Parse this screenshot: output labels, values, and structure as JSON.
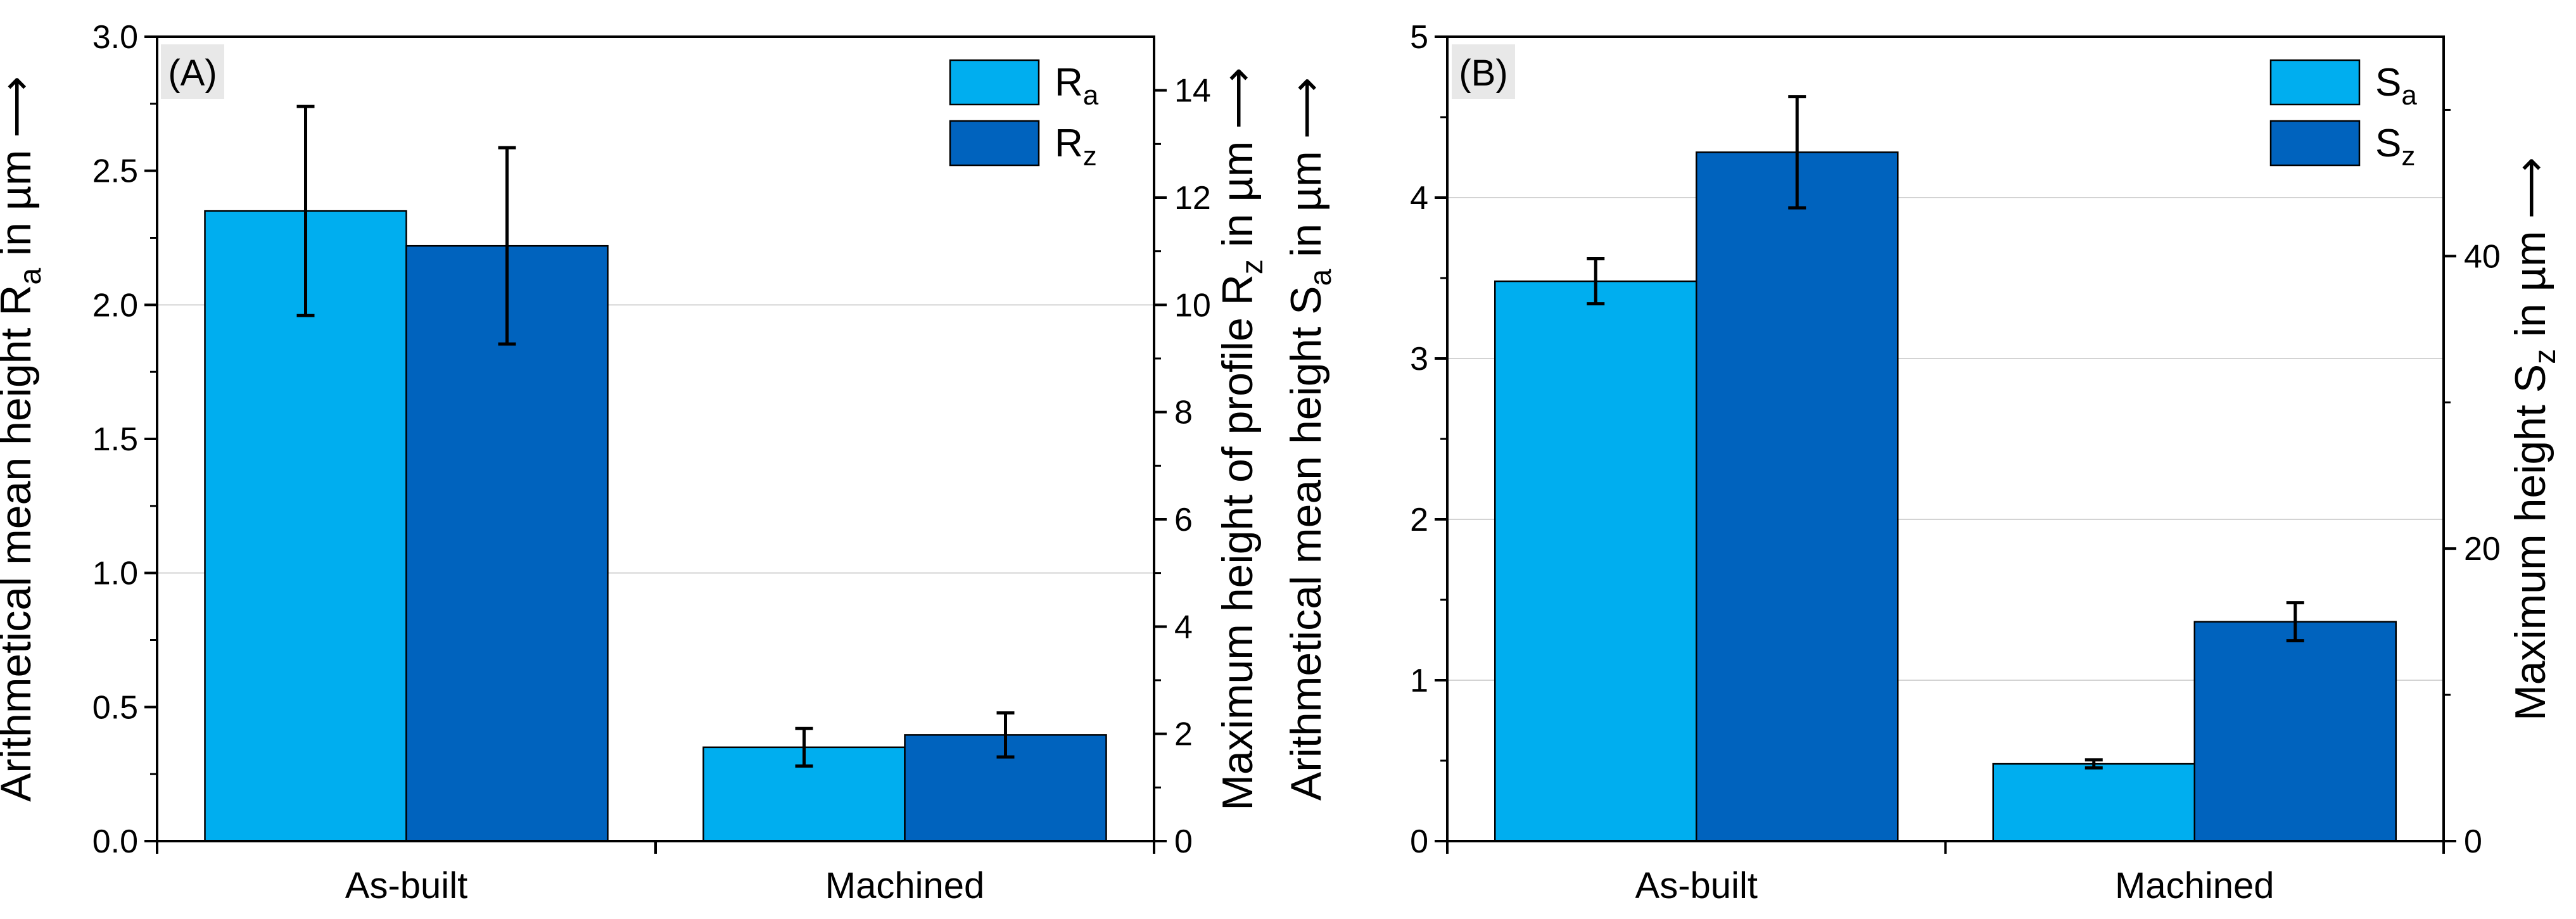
{
  "colors": {
    "light_bar": "#00aeef",
    "dark_bar": "#0063be",
    "panel_label": "#1f5fb4",
    "label_bg": "#e8e8e8",
    "grid": "#d3d3d3"
  },
  "chart_data": [
    {
      "type": "bar",
      "panel_label": "(A)",
      "categories": [
        "As-built",
        "Machined"
      ],
      "ylabel_left": "Arithmetical mean height R",
      "ylabel_left_sub": "a",
      "ylabel_left_suffix": " in µm ⟶",
      "ylabel_right": "Maximum height of profile R",
      "ylabel_right_sub": "z",
      "ylabel_right_suffix": " in µm ⟶",
      "ylim_left": [
        0,
        3.0
      ],
      "yticks_left": [
        "0.0",
        "0.5",
        "1.0",
        "1.5",
        "2.0",
        "2.5",
        "3.0"
      ],
      "ylim_right": [
        0,
        15
      ],
      "yticks_right": [
        "0",
        "2",
        "4",
        "6",
        "8",
        "10",
        "12",
        "14"
      ],
      "gridlines_left": [
        1.0,
        2.0
      ],
      "legend_position": "top-right",
      "series": [
        {
          "name": "R",
          "sub": "a",
          "axis": "left",
          "color": "light",
          "values": [
            2.35,
            0.35
          ],
          "errors": [
            0.39,
            0.07
          ]
        },
        {
          "name": "R",
          "sub": "z",
          "axis": "right",
          "color": "dark",
          "values": [
            11.1,
            1.98
          ],
          "errors": [
            1.83,
            0.41
          ]
        }
      ]
    },
    {
      "type": "bar",
      "panel_label": "(B)",
      "categories": [
        "As-built",
        "Machined"
      ],
      "ylabel_left": "Arithmetical mean height S",
      "ylabel_left_sub": "a",
      "ylabel_left_suffix": " in µm ⟶",
      "ylabel_right": "Maximum height S",
      "ylabel_right_sub": "z",
      "ylabel_right_suffix": " in µm ⟶",
      "ylim_left": [
        0,
        5
      ],
      "yticks_left": [
        "0",
        "1",
        "2",
        "3",
        "4",
        "5"
      ],
      "ylim_right": [
        0,
        55
      ],
      "yticks_right": [
        "0",
        "20",
        "40"
      ],
      "gridlines_left": [
        1,
        2,
        3,
        4
      ],
      "legend_position": "top-right",
      "series": [
        {
          "name": "S",
          "sub": "a",
          "axis": "left",
          "color": "light",
          "values": [
            3.48,
            0.48
          ],
          "errors": [
            0.14,
            0.025
          ]
        },
        {
          "name": "S",
          "sub": "z",
          "axis": "right",
          "color": "dark",
          "values": [
            47.1,
            15.0
          ],
          "errors": [
            3.8,
            1.3
          ]
        }
      ]
    }
  ]
}
